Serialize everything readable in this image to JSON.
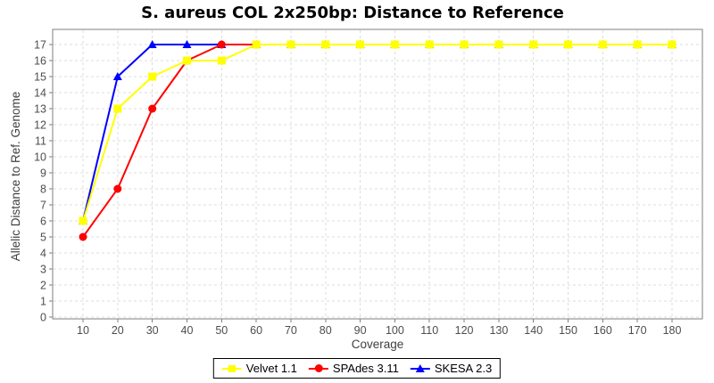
{
  "chart_data": {
    "type": "line",
    "title": "S. aureus COL 2x250bp: Distance to Reference",
    "xlabel": "Coverage",
    "ylabel": "Allelic Distance to Ref. Genome",
    "x": [
      10,
      20,
      30,
      40,
      50,
      60,
      70,
      80,
      90,
      100,
      110,
      120,
      130,
      140,
      150,
      160,
      170,
      180
    ],
    "series": [
      {
        "name": "Velvet 1.1",
        "marker": "square",
        "color": "#ffff00",
        "values": [
          6,
          13,
          15,
          16,
          16,
          17,
          17,
          17,
          17,
          17,
          17,
          17,
          17,
          17,
          17,
          17,
          17,
          17
        ]
      },
      {
        "name": "SPAdes 3.11",
        "marker": "circle",
        "color": "#ff0000",
        "values": [
          5,
          8,
          13,
          16,
          17,
          17,
          17,
          17,
          17,
          17,
          17,
          17,
          17,
          17,
          17,
          17,
          17,
          17
        ]
      },
      {
        "name": "SKESA 2.3",
        "marker": "triangle-up",
        "color": "#0000ff",
        "values": [
          6,
          15,
          17,
          17,
          17,
          17,
          17,
          17,
          17,
          17,
          17,
          17,
          17,
          17,
          17,
          17,
          17,
          17
        ]
      }
    ],
    "ylim": [
      0,
      17
    ],
    "yticks": [
      0,
      1,
      2,
      3,
      4,
      5,
      6,
      7,
      8,
      9,
      10,
      11,
      12,
      13,
      14,
      15,
      16,
      17
    ],
    "xticks": [
      10,
      20,
      30,
      40,
      50,
      60,
      70,
      80,
      90,
      100,
      110,
      120,
      130,
      140,
      150,
      160,
      170,
      180
    ],
    "grid": "dashed",
    "legend_position": "bottom-center"
  },
  "style": {
    "background": "#ffffff",
    "grid_color": "#dcdcdc",
    "plot_border_color": "#7f7f7f",
    "tick_color": "#7f7f7f",
    "tick_label_color": "#4d4d4d",
    "axis_label_color": "#3f3f3f",
    "title_color": "#000000",
    "legend_border_color": "#000000"
  }
}
